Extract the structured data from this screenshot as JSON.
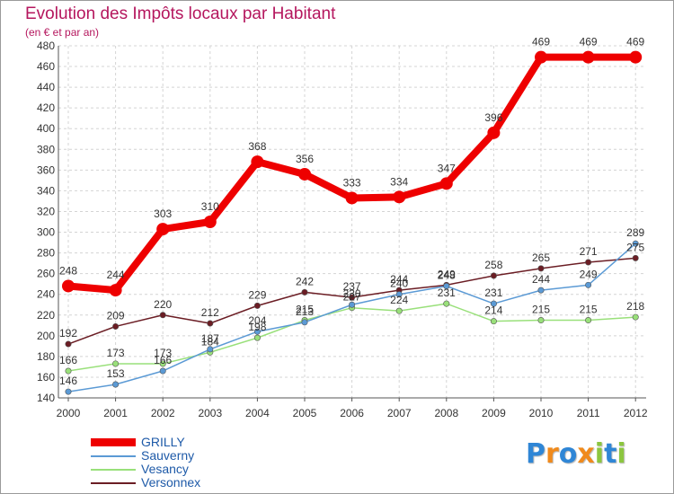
{
  "chart_data": {
    "type": "line",
    "title": "Evolution des Impôts locaux par Habitant",
    "subtitle": "(en € et par an)",
    "x": [
      "2000",
      "2001",
      "2002",
      "2003",
      "2004",
      "2005",
      "2006",
      "2007",
      "2008",
      "2009",
      "2010",
      "2011",
      "2012"
    ],
    "ylim": [
      140,
      480
    ],
    "yticks": [
      140,
      160,
      180,
      200,
      220,
      240,
      260,
      280,
      300,
      320,
      340,
      360,
      380,
      400,
      420,
      440,
      460,
      480
    ],
    "grid": true,
    "legend_position": "bottom-left",
    "series": [
      {
        "name": "GRILLY",
        "color": "#ee0000",
        "values": [
          248,
          244,
          303,
          310,
          368,
          356,
          333,
          334,
          347,
          396,
          469,
          469,
          469
        ]
      },
      {
        "name": "Sauverny",
        "color": "#5b9ad5",
        "values": [
          146,
          153,
          166,
          187,
          204,
          213,
          230,
          240,
          248,
          231,
          244,
          249,
          289
        ]
      },
      {
        "name": "Vesancy",
        "color": "#99e07a",
        "values": [
          166,
          173,
          173,
          184,
          198,
          215,
          227,
          224,
          231,
          214,
          215,
          215,
          218
        ]
      },
      {
        "name": "Versonnex",
        "color": "#6b1d24",
        "values": [
          192,
          209,
          220,
          212,
          229,
          242,
          237,
          244,
          249,
          258,
          265,
          271,
          275
        ]
      }
    ]
  },
  "logo": {
    "letters": [
      {
        "ch": "P",
        "color": "#2f86d6"
      },
      {
        "ch": "r",
        "color": "#f08a1c"
      },
      {
        "ch": "o",
        "color": "#2f86d6"
      },
      {
        "ch": "x",
        "color": "#f08a1c"
      },
      {
        "ch": "i",
        "color": "#8cc63f"
      },
      {
        "ch": "t",
        "color": "#2f86d6"
      },
      {
        "ch": "i",
        "color": "#8cc63f"
      }
    ]
  }
}
